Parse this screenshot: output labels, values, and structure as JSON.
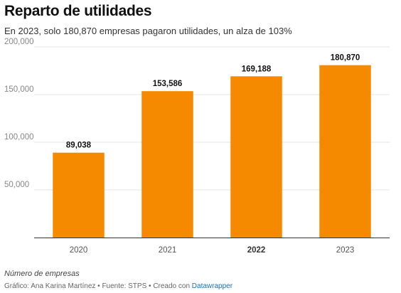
{
  "header": {
    "title": "Reparto de utilidades",
    "subtitle": "En 2023, solo 180,870 empresas pagaron utilidades, un alza de 103%"
  },
  "footer": {
    "note": "Número de empresas",
    "source_prefix": "Gráfico: Ana Karina Martínez • Fuente: STPS • Creado con",
    "source_link": "Datawrapper"
  },
  "colors": {
    "bar": "#f58a00",
    "grid": "#e6e6e6",
    "axis_label": "#888888",
    "data_label": "#111111"
  },
  "chart_data": {
    "type": "bar",
    "categories": [
      "2020",
      "2021",
      "2022",
      "2023"
    ],
    "values": [
      89038,
      153586,
      169188,
      180870
    ],
    "value_labels": [
      "89,038",
      "153,586",
      "169,188",
      "180,870"
    ],
    "highlighted_category": "2022",
    "yticks": [
      50000,
      100000,
      150000,
      200000
    ],
    "ytick_labels": [
      "50,000",
      "100,000",
      "150,000",
      "200,000"
    ],
    "ylim": [
      0,
      200000
    ],
    "grid": true,
    "legend": "none",
    "title": "Reparto de utilidades",
    "xlabel": "",
    "ylabel": ""
  }
}
